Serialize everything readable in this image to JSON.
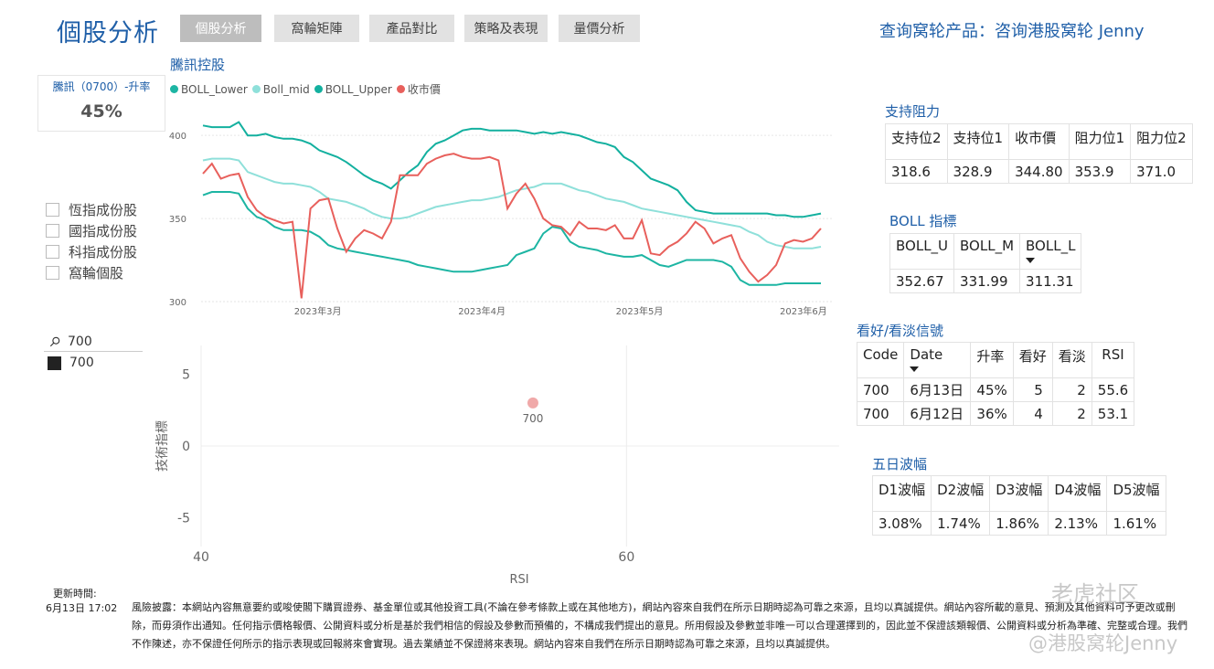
{
  "header": {
    "title": "個股分析",
    "tabs": [
      {
        "label": "個股分析",
        "active": true
      },
      {
        "label": "窩輪矩陣",
        "active": false
      },
      {
        "label": "產品對比",
        "active": false
      },
      {
        "label": "策略及表現",
        "active": false
      },
      {
        "label": "量價分析",
        "active": false
      }
    ],
    "query_text": "查询窝轮产品：咨询港股窝轮 Jenny"
  },
  "kpi": {
    "label": "騰訊（0700）-升率",
    "value": "45%"
  },
  "filters": {
    "checkboxes": [
      {
        "label": "恆指成份股",
        "checked": false
      },
      {
        "label": "國指成份股",
        "checked": false
      },
      {
        "label": "科指成份股",
        "checked": false
      },
      {
        "label": "窩輪個股",
        "checked": false
      }
    ],
    "search_value": "700",
    "selected_item": "700"
  },
  "colors": {
    "brand": "#1f5fa8",
    "boll_lower": "#1db5a3",
    "boll_mid": "#8fe0da",
    "boll_upper": "#13b09f",
    "close": "#e8605c",
    "scatter_point": "#f0a9a9"
  },
  "chart_data": [
    {
      "type": "line",
      "title": "騰訊控股",
      "x_ticks": [
        "2023年3月",
        "2023年4月",
        "2023年5月",
        "2023年6月"
      ],
      "y_ticks": [
        300,
        350,
        400
      ],
      "ylim": [
        300,
        410
      ],
      "legend_position": "top-left",
      "series": [
        {
          "name": "BOLL_Lower",
          "values": [
            364,
            366,
            366,
            366,
            365,
            356,
            351,
            349,
            345,
            343,
            343,
            343,
            342,
            339,
            334,
            332,
            331,
            330,
            329,
            328,
            327,
            326,
            325,
            324,
            322,
            321,
            320,
            319,
            318,
            318,
            318,
            319,
            320,
            321,
            322,
            328,
            330,
            332,
            341,
            345,
            344,
            336,
            333,
            332,
            331,
            329,
            328,
            327,
            327,
            328,
            325,
            322,
            321,
            323,
            325,
            325,
            325,
            325,
            324,
            321,
            313,
            310,
            310,
            310,
            310,
            311,
            311,
            311,
            311,
            311
          ]
        },
        {
          "name": "Boll_mid",
          "values": [
            385,
            386,
            386,
            386,
            385,
            378,
            376,
            374,
            372,
            371,
            371,
            370,
            369,
            366,
            362,
            361,
            360,
            358,
            356,
            353,
            351,
            350,
            350,
            351,
            353,
            355,
            357,
            358,
            359,
            360,
            361,
            361,
            362,
            363,
            365,
            367,
            368,
            369,
            371,
            371,
            371,
            369,
            367,
            366,
            364,
            362,
            361,
            360,
            358,
            356,
            355,
            354,
            353,
            352,
            351,
            350,
            349,
            348,
            347,
            346,
            345,
            342,
            340,
            336,
            334,
            333,
            332,
            332,
            332,
            333
          ]
        },
        {
          "name": "BOLL_Upper",
          "values": [
            406,
            405,
            405,
            405,
            408,
            400,
            400,
            401,
            399,
            398,
            398,
            397,
            395,
            391,
            389,
            387,
            384,
            380,
            376,
            373,
            371,
            368,
            373,
            378,
            382,
            390,
            395,
            397,
            400,
            403,
            404,
            404,
            403,
            403,
            403,
            403,
            402,
            401,
            402,
            401,
            402,
            401,
            400,
            398,
            396,
            395,
            393,
            387,
            384,
            379,
            374,
            372,
            370,
            367,
            360,
            355,
            354,
            353,
            353,
            353,
            353,
            353,
            353,
            353,
            352,
            352,
            351,
            351,
            352,
            353
          ]
        },
        {
          "name": "收市價",
          "values": [
            377,
            383,
            374,
            376,
            377,
            363,
            355,
            351,
            349,
            347,
            348,
            302,
            356,
            361,
            362,
            344,
            330,
            338,
            343,
            341,
            338,
            348,
            376,
            376,
            376,
            383,
            386,
            388,
            389,
            387,
            386,
            386,
            387,
            385,
            356,
            365,
            371,
            362,
            350,
            346,
            345,
            340,
            348,
            344,
            344,
            343,
            346,
            338,
            338,
            349,
            329,
            328,
            333,
            336,
            341,
            348,
            344,
            335,
            338,
            340,
            326,
            318,
            312,
            316,
            322,
            335,
            337,
            336,
            338,
            344
          ]
        }
      ]
    },
    {
      "type": "scatter",
      "xlabel": "RSI",
      "ylabel": "技術指標",
      "x_ticks": [
        40,
        60
      ],
      "y_ticks": [
        5,
        0,
        -5
      ],
      "xlim": [
        40,
        70
      ],
      "ylim": [
        -7,
        7
      ],
      "points": [
        {
          "x": 55.6,
          "y": 3,
          "label": "700"
        }
      ]
    }
  ],
  "support_resistance": {
    "title": "支持阻力",
    "headers": [
      "支持位2",
      "支持位1",
      "收市價",
      "阻力位1",
      "阻力位2"
    ],
    "values": [
      "318.6",
      "328.9",
      "344.80",
      "353.9",
      "371.0"
    ]
  },
  "boll_table": {
    "title": "BOLL 指標",
    "headers": [
      "BOLL_U",
      "BOLL_M",
      "BOLL_L"
    ],
    "values": [
      "352.67",
      "331.99",
      "311.31"
    ]
  },
  "signal_table": {
    "title": "看好/看淡信號",
    "headers": [
      "Code",
      "Date",
      "升率",
      "看好",
      "看淡",
      "RSI"
    ],
    "rows": [
      [
        "700",
        "6月13日",
        "45%",
        "5",
        "2",
        "55.6"
      ],
      [
        "700",
        "6月12日",
        "36%",
        "4",
        "2",
        "53.1"
      ]
    ]
  },
  "wave_table": {
    "title": "五日波幅",
    "headers": [
      "D1波幅",
      "D2波幅",
      "D3波幅",
      "D4波幅",
      "D5波幅"
    ],
    "values": [
      "3.08%",
      "1.74%",
      "1.86%",
      "2.13%",
      "1.61%"
    ]
  },
  "footer": {
    "update_label": "更新時間:",
    "update_time": "6月13日 17:02",
    "disclaimer": "風險披露：本網站內容無意要約或唆使閣下購買證券、基金單位或其他投資工具(不論在參考條款上或在其他地方)，網站內容來自我們在所示日期時認為可靠之來源，且均以真誠提供。網站內容所載的意見、預測及其他資料可予更改或刪除，而毋須作出通知。任何指示價格報價、公開資料或分析是基於我們相信的假設及參數而預備的，不構成我們提出的意見。所用假設及參數並非唯一可以合理選擇到的，因此並不保證該類報價、公開資料或分析為準確、完整或合理。我們不作陳述，亦不保證任何所示的指示表現或回報將來會實現。過去業績並不保證將來表現。網站內容來自我們在所示日期時認為可靠之來源，且均以真誠提供。",
    "watermark_1": "老虎社区",
    "watermark_2": "@港股窝轮Jenny"
  }
}
